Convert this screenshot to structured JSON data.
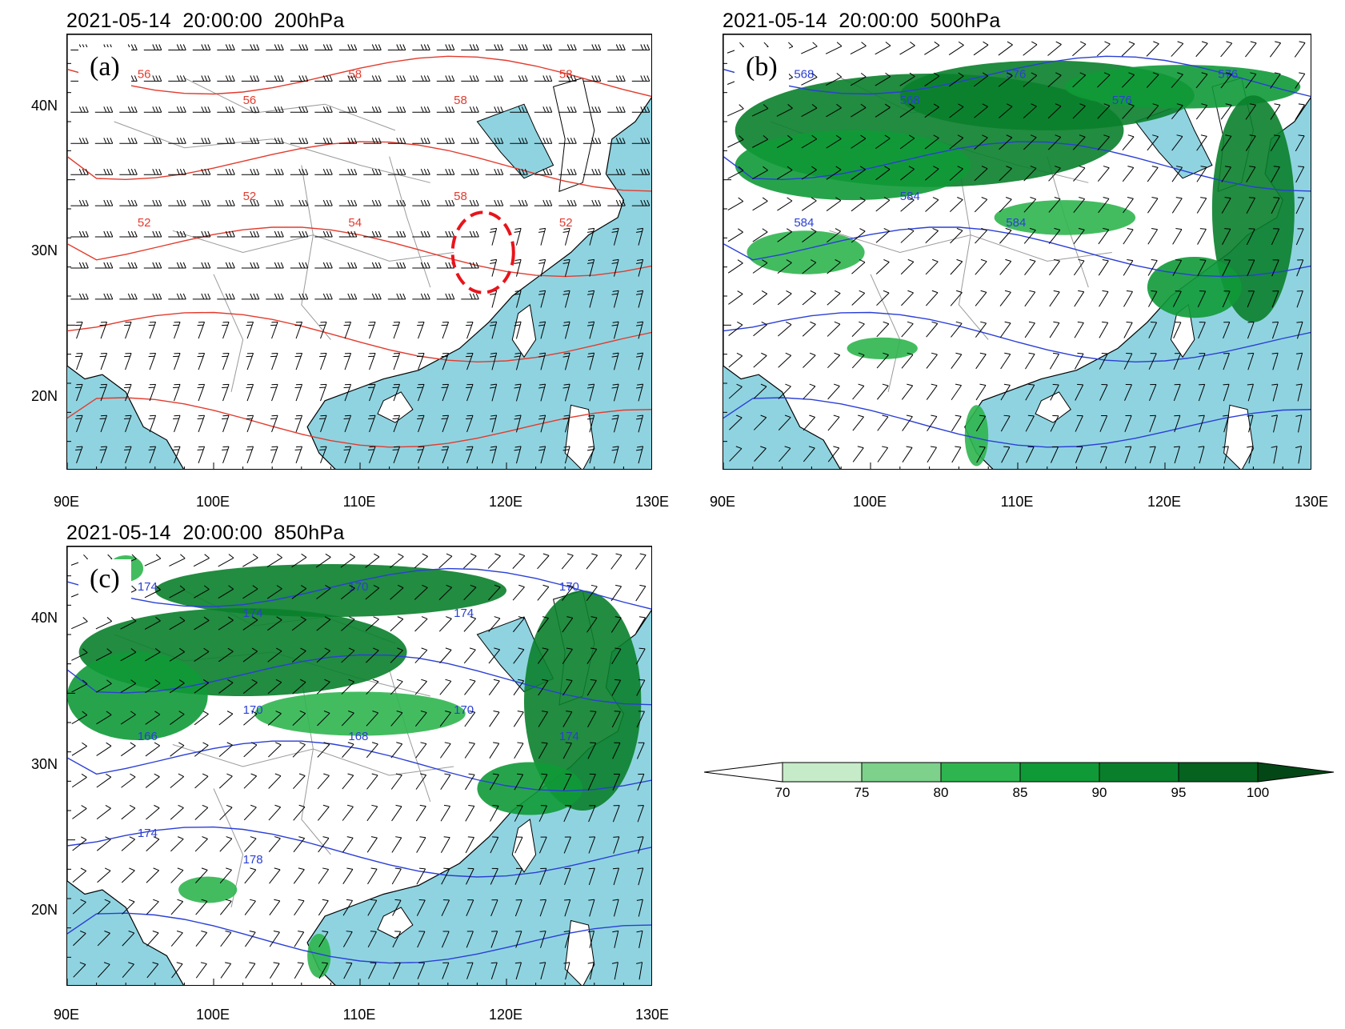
{
  "panels": [
    {
      "id": "a",
      "title": "2021-05-14  20:00:00  200hPa",
      "letter": "(a)",
      "contour_color": "#e23b2e",
      "contour_labels": [
        "56",
        "56",
        "58",
        "58",
        "58",
        "52",
        "52",
        "54",
        "58",
        "52"
      ],
      "humidity_shading": false
    },
    {
      "id": "b",
      "title": "2021-05-14  20:00:00  500hPa",
      "letter": "(b)",
      "contour_color": "#2a3fd6",
      "contour_labels": [
        "568",
        "568",
        "576",
        "576",
        "576",
        "584",
        "584",
        "584"
      ],
      "humidity_shading": true
    },
    {
      "id": "c",
      "title": "2021-05-14  20:00:00  850hPa",
      "letter": "(c)",
      "contour_color": "#2a3fd6",
      "contour_labels": [
        "174",
        "174",
        "170",
        "174",
        "170",
        "166",
        "170",
        "168",
        "170",
        "174",
        "174",
        "178"
      ],
      "humidity_shading": true
    }
  ],
  "axes": {
    "lat_labels": [
      "40N",
      "30N",
      "20N"
    ],
    "lon_labels": [
      "90E",
      "100E",
      "110E",
      "120E",
      "130E"
    ]
  },
  "colorbar": {
    "labels": [
      "70",
      "75",
      "80",
      "85",
      "90",
      "95",
      "100"
    ],
    "colors": [
      "#ffffff",
      "#c6ebc8",
      "#7dd18a",
      "#2fb54f",
      "#109a37",
      "#0a7f2b",
      "#05621f",
      "#034716"
    ]
  },
  "colors": {
    "ocean": "#8fd3e0",
    "land": "#ffffff",
    "highlight_circle": "#e8141b"
  }
}
